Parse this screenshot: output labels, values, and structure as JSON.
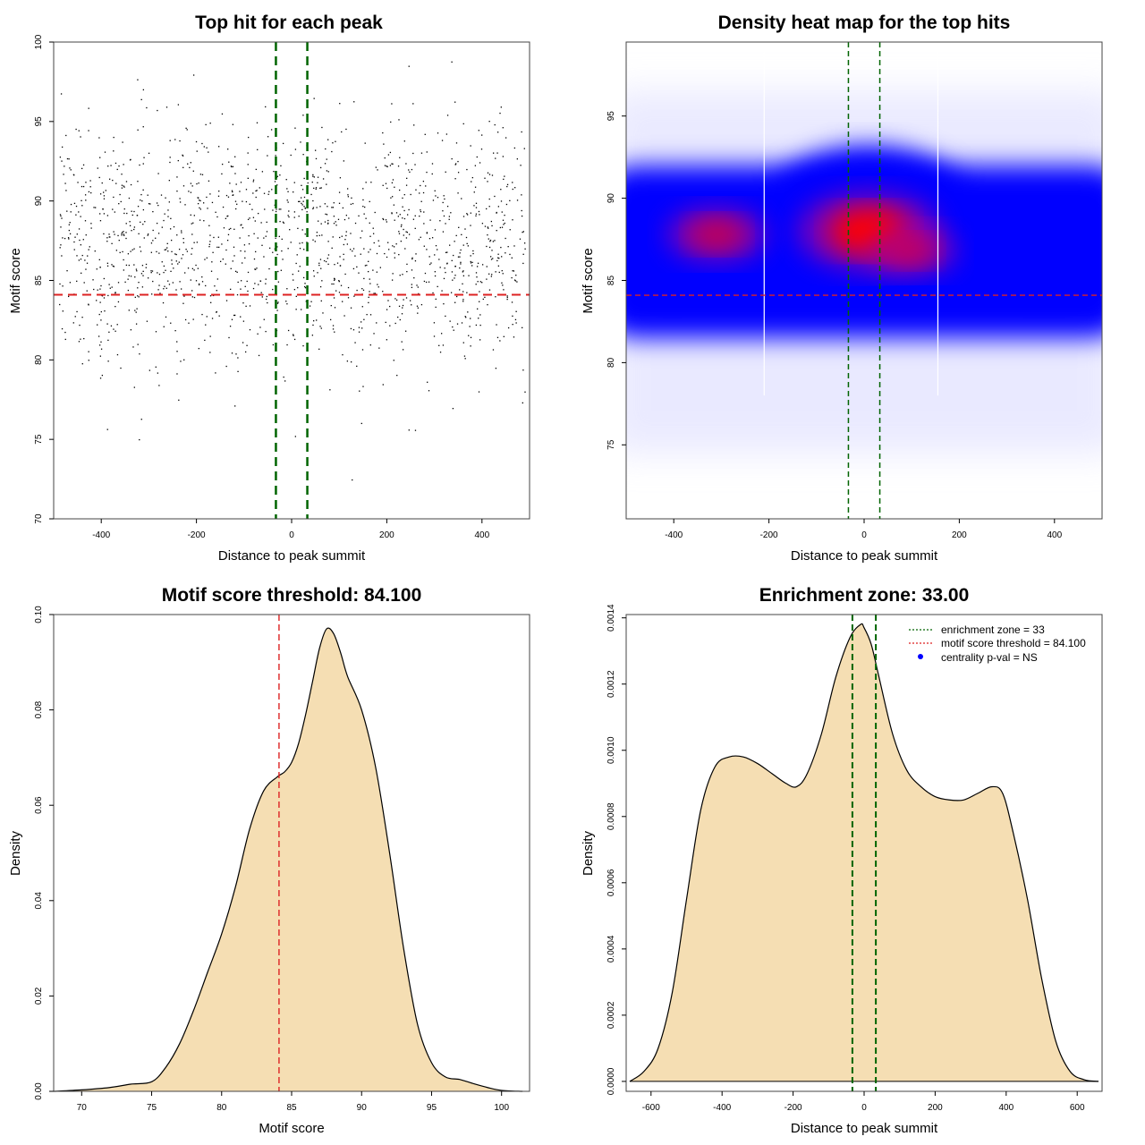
{
  "colors": {
    "threshold": "#dd2222",
    "zone": "#006400",
    "fill": "#f5deb3",
    "heat_low": "#0000ff",
    "heat_high": "#ff0000",
    "point": "#000000"
  },
  "chart_data": [
    {
      "type": "scatter",
      "title": "Top hit for each peak",
      "xlabel": "Distance to peak summit",
      "ylabel": "Motif score",
      "xlim": [
        -500,
        500
      ],
      "ylim": [
        70,
        100
      ],
      "xticks": [
        "-400",
        "-200",
        "0",
        "200",
        "400"
      ],
      "yticks": [
        "70",
        "75",
        "80",
        "85",
        "90",
        "95",
        "100"
      ],
      "threshold_y": 84.1,
      "zone_x": [
        -33,
        33
      ],
      "point_count": 1500,
      "point_seed": 11,
      "score_mean": 87.2,
      "score_sd": 3.9,
      "grid": false
    },
    {
      "type": "heatmap",
      "title": "Density heat map for the top hits",
      "xlabel": "Distance to peak summit",
      "ylabel": "Motif score",
      "xlim": [
        -500,
        500
      ],
      "ylim": [
        70.5,
        99.5
      ],
      "xticks": [
        "-400",
        "-200",
        "0",
        "200",
        "400"
      ],
      "yticks": [
        "75",
        "80",
        "85",
        "90",
        "95"
      ],
      "threshold_y": 84.1,
      "zone_x": [
        -33,
        33
      ],
      "hot_spots": [
        {
          "x": 10,
          "y": 88,
          "level": 1.0
        },
        {
          "x": -310,
          "y": 87.8,
          "level": 0.55
        },
        {
          "x": 100,
          "y": 86.8,
          "level": 0.45
        }
      ],
      "grid": false
    },
    {
      "type": "area",
      "title": "Motif score threshold: 84.100",
      "xlabel": "Motif score",
      "ylabel": "Density",
      "xlim": [
        68,
        102
      ],
      "ylim": [
        0,
        0.1
      ],
      "xticks": [
        "70",
        "75",
        "80",
        "85",
        "90",
        "95",
        "100"
      ],
      "yticks": [
        "0.00",
        "0.02",
        "0.04",
        "0.06",
        "0.08",
        "0.10"
      ],
      "threshold_x": 84.1,
      "x": [
        68,
        70,
        72,
        73.5,
        75,
        76,
        77,
        78,
        79,
        80,
        81,
        82,
        83,
        84,
        84.5,
        85,
        85.5,
        86,
        86.5,
        87,
        87.5,
        88,
        88.5,
        89,
        90,
        91,
        92,
        93,
        94,
        95,
        96,
        97,
        98,
        99,
        100,
        101.5
      ],
      "y": [
        0,
        0.0003,
        0.0008,
        0.0015,
        0.002,
        0.005,
        0.01,
        0.017,
        0.025,
        0.033,
        0.043,
        0.055,
        0.063,
        0.066,
        0.067,
        0.069,
        0.073,
        0.079,
        0.086,
        0.093,
        0.097,
        0.096,
        0.092,
        0.087,
        0.08,
        0.068,
        0.05,
        0.03,
        0.014,
        0.006,
        0.003,
        0.0025,
        0.0016,
        0.0008,
        0.0002,
        0
      ],
      "grid": false
    },
    {
      "type": "area",
      "title": "Enrichment zone: 33.00",
      "xlabel": "Distance to peak summit",
      "ylabel": "Density",
      "xlim": [
        -670,
        670
      ],
      "ylim": [
        -3e-05,
        0.00141
      ],
      "xticks": [
        "-600",
        "-400",
        "-200",
        "0",
        "200",
        "400",
        "600"
      ],
      "yticks": [
        "0.0000",
        "0.0002",
        "0.0004",
        "0.0006",
        "0.0008",
        "0.0010",
        "0.0012",
        "0.0014"
      ],
      "zone_x": [
        -33,
        33
      ],
      "x": [
        -660,
        -620,
        -580,
        -540,
        -500,
        -460,
        -420,
        -380,
        -340,
        -300,
        -260,
        -220,
        -190,
        -160,
        -120,
        -80,
        -40,
        -10,
        0,
        20,
        40,
        80,
        120,
        160,
        200,
        240,
        280,
        320,
        360,
        390,
        420,
        460,
        500,
        540,
        580,
        620,
        660
      ],
      "y": [
        0,
        3e-05,
        0.0001,
        0.00027,
        0.00055,
        0.00082,
        0.00095,
        0.00098,
        0.00098,
        0.00096,
        0.00093,
        0.0009,
        0.00089,
        0.00093,
        0.00105,
        0.00122,
        0.00134,
        0.00138,
        0.00137,
        0.00132,
        0.00123,
        0.00105,
        0.00094,
        0.00089,
        0.00086,
        0.00085,
        0.00085,
        0.00087,
        0.00089,
        0.00087,
        0.00075,
        0.00055,
        0.00031,
        0.00012,
        3e-05,
        5e-06,
        0
      ],
      "legend": {
        "position": "top-right",
        "entries": [
          {
            "label": "enrichment zone = 33",
            "style": "dotted-line",
            "color": "#006400"
          },
          {
            "label": "motif score threshold = 84.100",
            "style": "dotted-line",
            "color": "#dd2222"
          },
          {
            "label": "centrality p-val = NS",
            "style": "dot",
            "color": "#0000ff"
          }
        ]
      },
      "grid": false
    }
  ]
}
